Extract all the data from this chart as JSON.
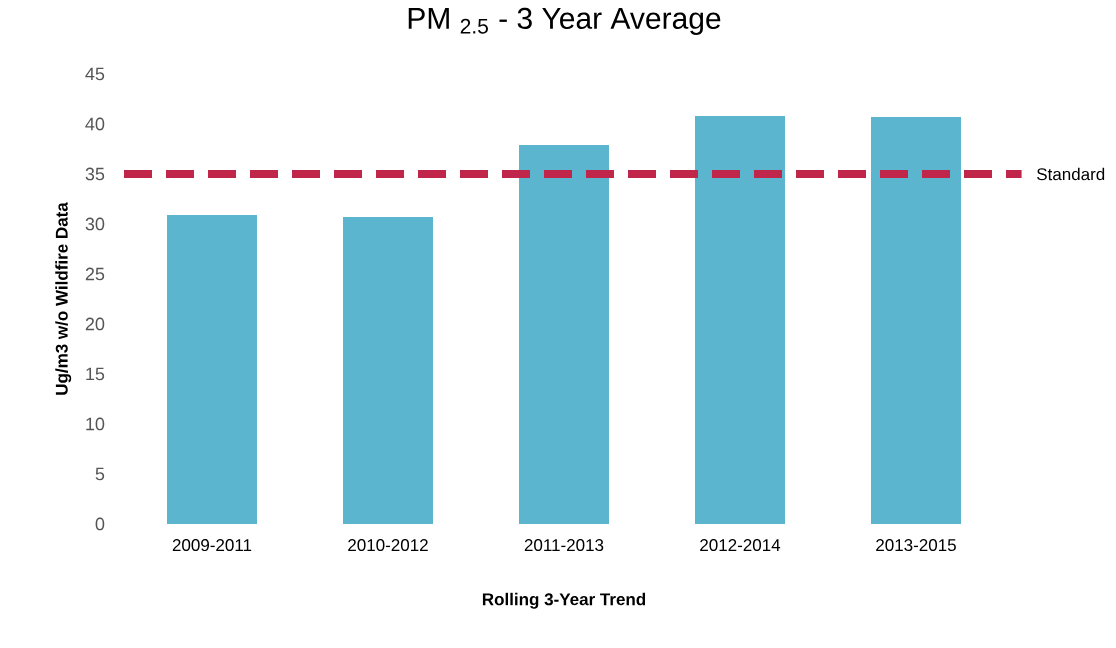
{
  "chart_data": {
    "type": "bar",
    "title": "PM $_{2.5}$ - 3 Year Average",
    "xlabel": "Rolling 3-Year Trend",
    "ylabel": "Ug/m3 w/o Wildfire Data",
    "categories": [
      "2009-2011",
      "2010-2012",
      "2011-2013",
      "2012-2014",
      "2013-2015"
    ],
    "values": [
      30.9,
      30.7,
      37.9,
      40.8,
      40.7
    ],
    "color": "#5bb5cf",
    "ylim": [
      0,
      45
    ],
    "yticks": [
      0,
      5,
      10,
      15,
      20,
      25,
      30,
      35,
      40,
      45
    ],
    "grid": false,
    "ref_lines": [
      {
        "axis": "y",
        "value": 35,
        "label": "Standard",
        "color": "#c0264a",
        "line_style": "dashed"
      }
    ]
  }
}
